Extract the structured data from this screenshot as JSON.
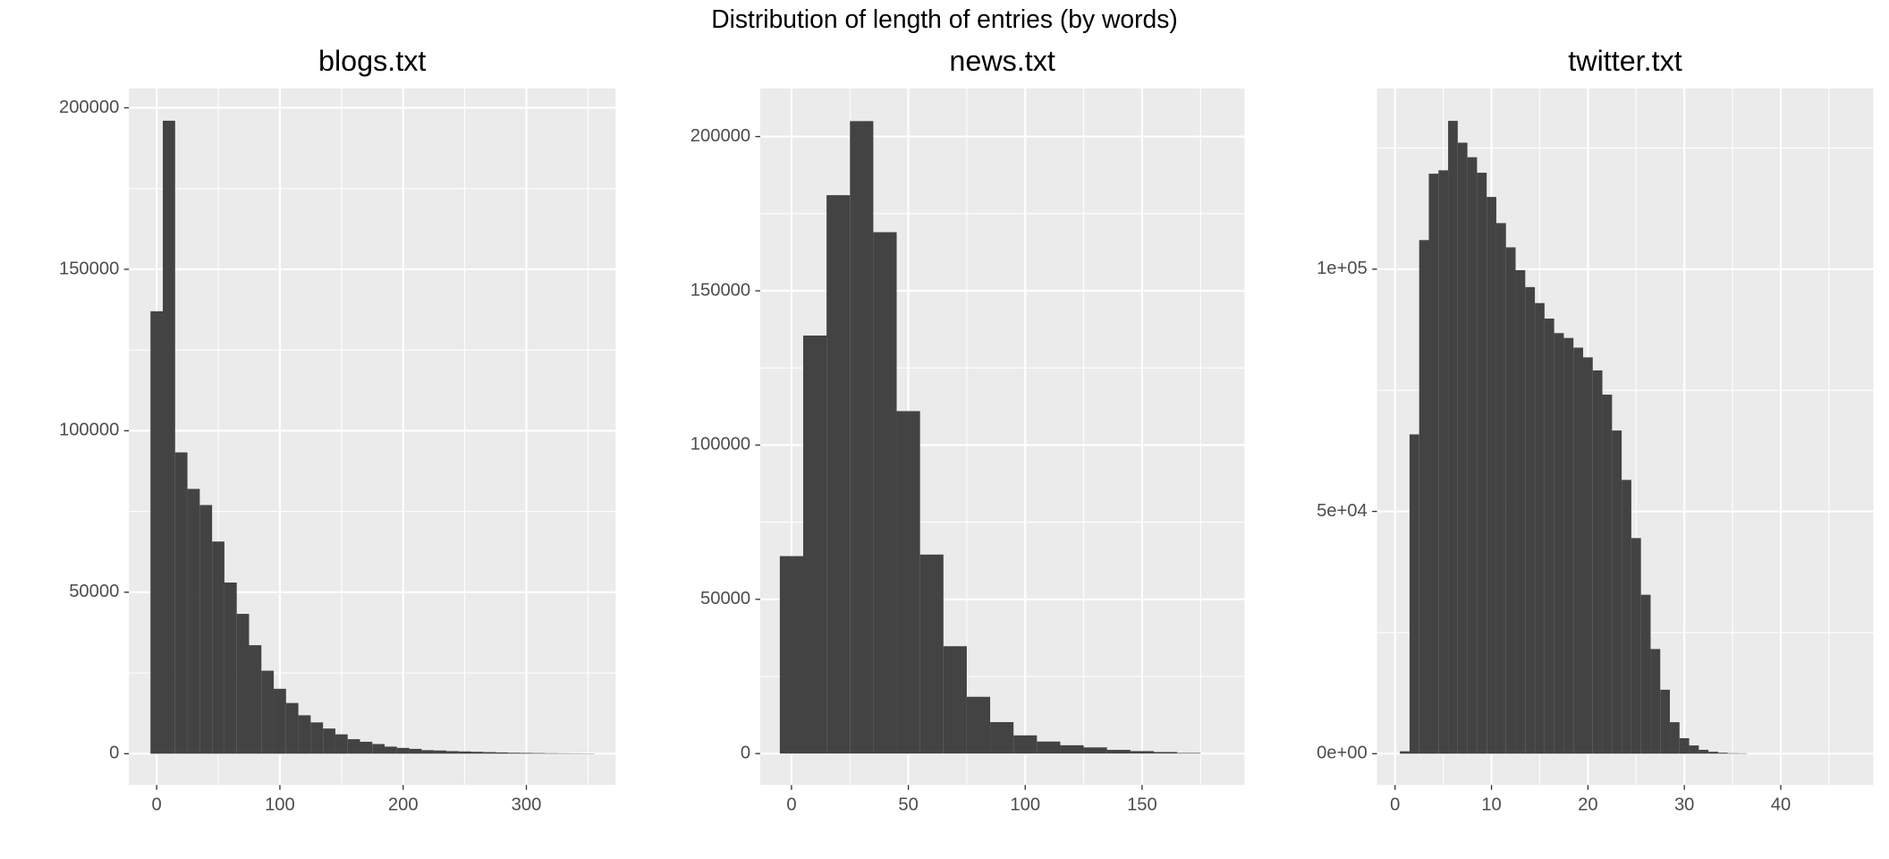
{
  "title": "Distribution of length of entries (by words)",
  "chart_data": [
    {
      "type": "histogram",
      "title": "blogs.txt",
      "color": "#434343",
      "grid": true,
      "bins": [
        -5,
        5,
        15,
        25,
        35,
        45,
        55,
        65,
        75,
        85,
        95,
        105,
        115,
        125,
        135,
        145,
        155,
        165,
        175,
        185,
        195,
        205,
        215,
        225,
        235,
        245,
        255,
        265,
        275,
        285,
        295,
        305,
        315,
        325,
        335,
        345,
        355
      ],
      "counts": [
        137000,
        196000,
        93300,
        82000,
        77000,
        65700,
        53000,
        43300,
        33600,
        25700,
        20100,
        15700,
        11900,
        9700,
        7800,
        6000,
        4500,
        3700,
        3000,
        2200,
        1800,
        1500,
        1100,
        1000,
        800,
        700,
        600,
        500,
        400,
        300,
        250,
        200,
        150,
        120,
        100,
        80
      ],
      "xlim": [
        -22.5,
        372.4
      ],
      "ylim": [
        -9700,
        206000
      ],
      "xticks": [
        0,
        100,
        200,
        300
      ],
      "yticks": [
        0,
        50000,
        100000,
        150000,
        200000
      ]
    },
    {
      "type": "histogram",
      "title": "news.txt",
      "color": "#434343",
      "grid": true,
      "bins": [
        -5,
        5,
        15,
        25,
        35,
        45,
        55,
        65,
        75,
        85,
        95,
        105,
        115,
        125,
        135,
        145,
        155,
        165,
        175
      ],
      "counts": [
        64000,
        135500,
        181000,
        205000,
        169000,
        111000,
        64500,
        34800,
        18400,
        10200,
        5900,
        3900,
        2700,
        2000,
        1200,
        800,
        500,
        200
      ],
      "xlim": [
        -13.4,
        193.8
      ],
      "ylim": [
        -10200,
        215600
      ],
      "xticks": [
        0,
        50,
        100,
        150
      ],
      "yticks": [
        0,
        50000,
        100000,
        150000,
        200000
      ]
    },
    {
      "type": "histogram",
      "title": "twitter.txt",
      "color": "#434343",
      "grid": true,
      "bins": [
        0.5,
        1.5,
        2.5,
        3.5,
        4.5,
        5.5,
        6.5,
        7.5,
        8.5,
        9.5,
        10.5,
        11.5,
        12.5,
        13.5,
        14.5,
        15.5,
        16.5,
        17.5,
        18.5,
        19.5,
        20.5,
        21.5,
        22.5,
        23.5,
        24.5,
        25.5,
        26.5,
        27.5,
        28.5,
        29.5,
        30.5,
        31.5,
        32.5,
        33.5,
        34.5,
        35.5,
        36.5
      ],
      "counts": [
        500,
        65900,
        106000,
        119700,
        120400,
        130600,
        126100,
        123100,
        119900,
        114900,
        109500,
        104500,
        99800,
        96300,
        93000,
        89800,
        86800,
        85800,
        83800,
        81800,
        79100,
        74100,
        66700,
        56500,
        44500,
        32800,
        21600,
        13200,
        6500,
        3200,
        1700,
        800,
        400,
        200,
        100,
        80
      ],
      "xlim": [
        -1.875,
        49.6
      ],
      "ylim": [
        -6470,
        137300
      ],
      "xticks": [
        0,
        10,
        20,
        30,
        40
      ],
      "yticks": [
        {
          "value": 0,
          "label": "0e+00"
        },
        {
          "value": 50000,
          "label": "5e+04"
        },
        {
          "value": 100000,
          "label": "1e+05"
        }
      ]
    }
  ]
}
